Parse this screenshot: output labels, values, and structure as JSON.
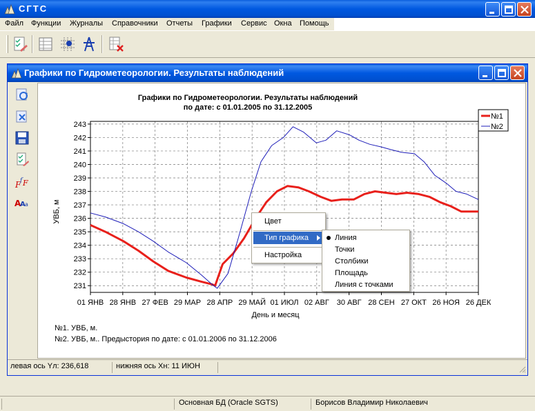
{
  "app": {
    "title": "СГТС"
  },
  "menu": [
    "Файл",
    "Функции",
    "Журналы",
    "Справочники",
    "Отчеты",
    "Графики",
    "Сервис",
    "Окна",
    "Помощь"
  ],
  "child_window": {
    "title": "Графики по Гидрометеорологии. Результаты наблюдений"
  },
  "chart": {
    "title_line1": "Графики по Гидрометеорологии. Результаты наблюдений",
    "title_line2": "по дате: с 01.01.2005 по 31.12.2005",
    "ylabel": "УВБ, м",
    "xlabel": "День и месяц",
    "legend": [
      "№1",
      "№2"
    ],
    "notes": [
      "№1. УВБ, м.",
      "№2. УВБ, м.. Предыстория по дате: с 01.01.2006 по 31.12.2006"
    ]
  },
  "chart_data": {
    "type": "line",
    "title": "Графики по Гидрометеорологии. Результаты наблюдений по дате: с 01.01.2005 по 31.12.2005",
    "xlabel": "День и месяц",
    "ylabel": "УВБ, м",
    "ylim": [
      230.5,
      243.2
    ],
    "yticks": [
      231,
      232,
      233,
      234,
      235,
      236,
      237,
      238,
      239,
      240,
      241,
      242,
      243
    ],
    "xticks": [
      "01 ЯНВ",
      "28 ЯНВ",
      "27 ФЕВ",
      "29 МАР",
      "28 АПР",
      "29 МАЙ",
      "01 ИЮЛ",
      "02 АВГ",
      "30 АВГ",
      "28 СЕН",
      "27 ОКТ",
      "26 НОЯ",
      "26 ДЕК"
    ],
    "grid": true,
    "legend_position": "top-right",
    "series": [
      {
        "name": "№1",
        "color": "#e8201b",
        "x": [
          "01.01",
          "15.01",
          "01.02",
          "15.02",
          "01.03",
          "15.03",
          "01.04",
          "15.04",
          "25.04",
          "28.04",
          "05.05",
          "15.05",
          "25.05",
          "05.06",
          "15.06",
          "25.06",
          "05.07",
          "15.07",
          "25.07",
          "05.08",
          "15.08",
          "25.08",
          "05.09",
          "15.09",
          "25.09",
          "05.10",
          "15.10",
          "25.10",
          "05.11",
          "15.11",
          "25.11",
          "05.12",
          "15.12",
          "31.12"
        ],
        "values": [
          235.5,
          235.0,
          234.3,
          233.6,
          232.8,
          232.1,
          231.6,
          231.3,
          231.1,
          231.0,
          232.6,
          233.4,
          234.5,
          236.0,
          237.2,
          238.0,
          238.4,
          238.3,
          238.0,
          237.6,
          237.3,
          237.4,
          237.4,
          237.8,
          238.0,
          237.9,
          237.8,
          237.9,
          237.8,
          237.6,
          237.2,
          236.9,
          236.5,
          236.5
        ]
      },
      {
        "name": "№2",
        "color": "#1c1cb8",
        "x": [
          "01.01",
          "15.01",
          "01.02",
          "15.02",
          "01.03",
          "15.03",
          "01.04",
          "15.04",
          "25.04",
          "30.04",
          "10.05",
          "20.05",
          "01.06",
          "10.06",
          "20.06",
          "01.07",
          "10.07",
          "20.07",
          "01.08",
          "10.08",
          "20.08",
          "01.09",
          "10.09",
          "20.09",
          "01.10",
          "10.10",
          "20.10",
          "01.11",
          "10.11",
          "20.11",
          "01.12",
          "10.12",
          "20.12",
          "31.12"
        ],
        "values": [
          236.4,
          236.1,
          235.6,
          235.0,
          234.3,
          233.5,
          232.7,
          231.8,
          231.1,
          230.8,
          231.9,
          234.6,
          238.0,
          240.2,
          241.4,
          242.0,
          242.8,
          242.4,
          241.6,
          241.8,
          242.5,
          242.2,
          241.8,
          241.5,
          241.3,
          241.1,
          240.9,
          240.8,
          240.2,
          239.2,
          238.6,
          238.0,
          237.8,
          237.4
        ]
      }
    ]
  },
  "context_menu": {
    "items": [
      "Цвет",
      "Тип графика",
      "Настройка"
    ],
    "submenu": [
      "Линия",
      "Точки",
      "Столбики",
      "Площадь",
      "Линия с точками"
    ],
    "submenu_checked": "Линия"
  },
  "child_status": {
    "left_axis": "левая ось Yл: 236,618",
    "bottom_axis": "нижняя ось Xн: 11 ИЮН"
  },
  "main_status": {
    "db": "Основная БД (Oracle SGTS)",
    "user": "Борисов Владимир Николаевич"
  }
}
